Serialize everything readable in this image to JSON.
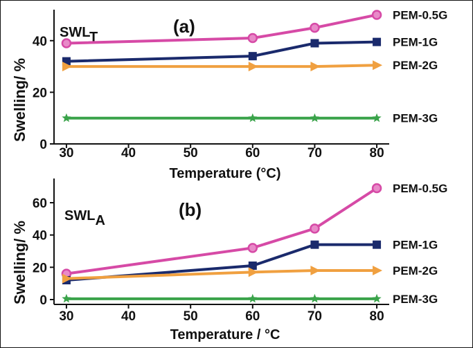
{
  "chart_data": [
    {
      "type": "line",
      "panel_label": "(a)",
      "tag_main": "SWL",
      "tag_sub": "T",
      "xlabel": "Temperature (°C)",
      "ylabel": "Swelling/ %",
      "x": [
        30,
        60,
        70,
        80
      ],
      "xticks": [
        "30",
        "40",
        "50",
        "60",
        "70",
        "80"
      ],
      "yticks": [
        "0",
        "20",
        "40"
      ],
      "xlim": [
        28,
        82
      ],
      "ylim": [
        0,
        52
      ],
      "series": [
        {
          "name": "PEM-0.5G",
          "values": [
            39,
            41,
            45,
            50
          ],
          "color": "#d64aa6",
          "marker": "circle"
        },
        {
          "name": "PEM-1G",
          "values": [
            32,
            34,
            39,
            39.5
          ],
          "color": "#1a2a6c",
          "marker": "square"
        },
        {
          "name": "PEM-2G",
          "values": [
            30,
            30,
            30,
            30.5
          ],
          "color": "#f0a040",
          "marker": "triangle"
        },
        {
          "name": "PEM-3G",
          "values": [
            10,
            10,
            10,
            10
          ],
          "color": "#3aa34a",
          "marker": "star"
        }
      ]
    },
    {
      "type": "line",
      "panel_label": "(b)",
      "tag_main": "SWL",
      "tag_sub": "A",
      "xlabel": "Temperature / °C",
      "ylabel": "Swelling/ %",
      "x": [
        30,
        60,
        70,
        80
      ],
      "xticks": [
        "30",
        "40",
        "50",
        "60",
        "70",
        "80"
      ],
      "yticks": [
        "0",
        "20",
        "40",
        "60"
      ],
      "xlim": [
        28,
        82
      ],
      "ylim": [
        -3,
        75
      ],
      "series": [
        {
          "name": "PEM-0.5G",
          "values": [
            16,
            32,
            44,
            69
          ],
          "color": "#d64aa6",
          "marker": "circle"
        },
        {
          "name": "PEM-1G",
          "values": [
            12,
            21,
            34,
            34
          ],
          "color": "#1a2a6c",
          "marker": "square"
        },
        {
          "name": "PEM-2G",
          "values": [
            13,
            17,
            18,
            18
          ],
          "color": "#f0a040",
          "marker": "triangle"
        },
        {
          "name": "PEM-3G",
          "values": [
            0.5,
            0.5,
            0.5,
            0.5
          ],
          "color": "#3aa34a",
          "marker": "star"
        }
      ]
    }
  ]
}
